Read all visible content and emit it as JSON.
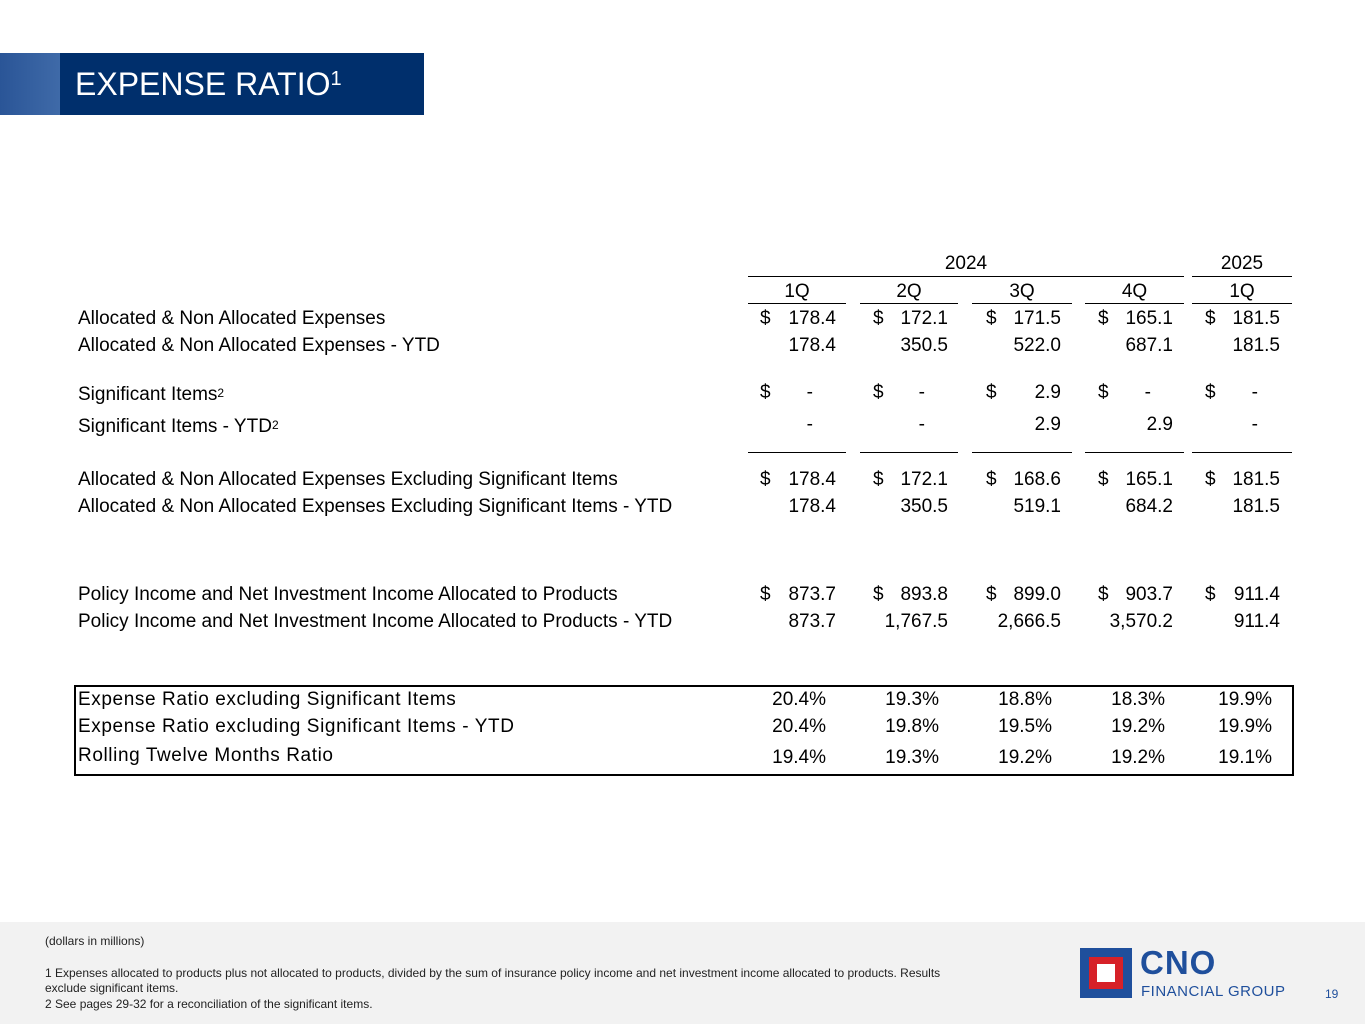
{
  "title": {
    "text": "EXPENSE RATIO",
    "superscript": "1"
  },
  "years": {
    "y2024": "2024",
    "y2025": "2025"
  },
  "quarters": [
    "1Q",
    "2Q",
    "3Q",
    "4Q",
    "1Q"
  ],
  "currency": "$",
  "rows": {
    "alloc": {
      "label": "Allocated & Non Allocated Expenses",
      "values": [
        "178.4",
        "172.1",
        "171.5",
        "165.1",
        "181.5"
      ]
    },
    "alloc_ytd": {
      "label": "Allocated & Non Allocated Expenses - YTD",
      "values": [
        "178.4",
        "350.5",
        "522.0",
        "687.1",
        "181.5"
      ]
    },
    "sig": {
      "label": "Significant Items",
      "sup": "2",
      "values": [
        "-",
        "-",
        "2.9",
        "-",
        "-"
      ]
    },
    "sig_ytd": {
      "label": "Significant Items - YTD",
      "sup": "2",
      "values": [
        "-",
        "-",
        "2.9",
        "2.9",
        "-"
      ]
    },
    "excl": {
      "label": "Allocated & Non Allocated Expenses Excluding Significant Items",
      "values": [
        "178.4",
        "172.1",
        "168.6",
        "165.1",
        "181.5"
      ]
    },
    "excl_ytd": {
      "label": "Allocated & Non Allocated Expenses Excluding Significant Items - YTD",
      "values": [
        "178.4",
        "350.5",
        "519.1",
        "684.2",
        "181.5"
      ]
    },
    "policy": {
      "label": "Policy Income and Net Investment Income Allocated to Products",
      "values": [
        "873.7",
        "893.8",
        "899.0",
        "903.7",
        "911.4"
      ]
    },
    "policy_ytd": {
      "label": "Policy Income and Net Investment Income Allocated to Products - YTD",
      "values": [
        "873.7",
        "1,767.5",
        "2,666.5",
        "3,570.2",
        "911.4"
      ]
    }
  },
  "ratios": {
    "ratio": {
      "label": "Expense Ratio excluding Significant Items",
      "values": [
        "20.4%",
        "19.3%",
        "18.8%",
        "18.3%",
        "19.9%"
      ]
    },
    "ratio_ytd": {
      "label": "Expense Ratio excluding Significant Items - YTD",
      "values": [
        "20.4%",
        "19.8%",
        "19.5%",
        "19.2%",
        "19.9%"
      ]
    },
    "rolling": {
      "label": "Rolling Twelve Months Ratio",
      "values": [
        "19.4%",
        "19.3%",
        "19.2%",
        "19.2%",
        "19.1%"
      ]
    }
  },
  "footer": {
    "units": "(dollars in millions)",
    "note1": "1  Expenses allocated to products plus not allocated to products, divided by the sum of insurance policy income and net investment income allocated to products. Results",
    "note1b": "exclude significant items.",
    "note2": "2  See pages 29-32 for a reconciliation of the significant items.",
    "logo_name": "CNO",
    "logo_sub": "FINANCIAL GROUP",
    "page_number": "19"
  }
}
